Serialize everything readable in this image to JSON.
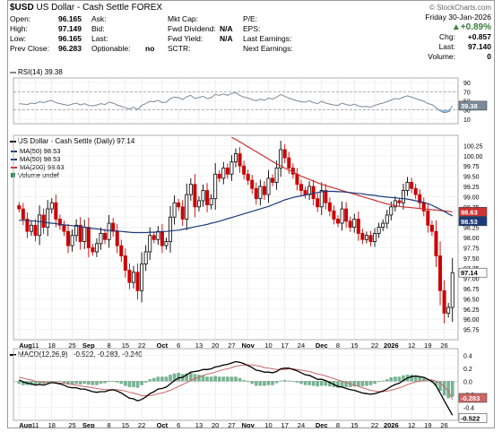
{
  "header": {
    "symbol": "$USD",
    "name": "US Dollar - Cash Settle",
    "exchange": "FOREX",
    "copyright": "© StockCharts.com",
    "date": "Friday  30-Jan-2026",
    "change_pct": "+0.89%",
    "col1": [
      [
        "Open:",
        "96.165"
      ],
      [
        "High:",
        "97.149"
      ],
      [
        "Low:",
        "96.165"
      ],
      [
        "Prev Close:",
        "96.283"
      ]
    ],
    "col2": [
      [
        "Ask:",
        ""
      ],
      [
        "Bid:",
        ""
      ],
      [
        "Last:",
        ""
      ],
      [
        "Optionable:",
        "no"
      ]
    ],
    "col3": [
      [
        "Mkt Cap:",
        ""
      ],
      [
        "Fwd Dividend:",
        "N/A"
      ],
      [
        "Fwd Yield:",
        "N/A"
      ],
      [
        "SCTR:",
        ""
      ]
    ],
    "col4": [
      [
        "P/E:",
        ""
      ],
      [
        "EPS:",
        ""
      ],
      [
        "Last Earnings:",
        ""
      ],
      [
        "Next Earnings:",
        ""
      ]
    ],
    "col5": [
      [
        "Chg:",
        "+0.857"
      ],
      [
        "Last:",
        "97.140"
      ],
      [
        "Volume:",
        "0"
      ]
    ]
  },
  "colors": {
    "up": "#000000",
    "down": "#cc0000",
    "ma50": "#1a3a7a",
    "ma200": "#cc3333",
    "rsi": "#7c8a9a",
    "macd": "#000000",
    "signal": "#cc6666",
    "hist": "#2e8b57"
  },
  "chart_data": [
    {
      "type": "candlestick",
      "title": "US Dollar - Cash Settle (Daily) 97.14",
      "legend": [
        {
          "name": "MA(50) 98.53",
          "color": "#1a3a7a"
        },
        {
          "name": "MA(50) 98.53",
          "color": "#1a3a7a"
        },
        {
          "name": "MA(200) 98.63",
          "color": "#cc3333"
        },
        {
          "name": "Volume undef",
          "color": "#2e8b57"
        }
      ],
      "ylim": [
        95.5,
        100.5
      ],
      "yticks": [
        95.75,
        96.0,
        96.25,
        96.5,
        96.75,
        97.0,
        97.25,
        97.5,
        97.75,
        98.0,
        98.25,
        98.5,
        98.75,
        99.0,
        99.25,
        99.5,
        99.75,
        100.0,
        100.25
      ],
      "ytick_labels": [
        "95.75",
        "96.00",
        "96.25",
        "96.50",
        "96.75",
        "97.00",
        "97.25",
        "97.50",
        "97.75",
        "98.00",
        "98.25",
        "98.50",
        "98.75",
        "99.00",
        "99.25",
        "99.50",
        "99.75",
        "100.00",
        "100.25"
      ],
      "last_badges": [
        {
          "label": "97.14",
          "value": 97.14
        },
        {
          "label": "98.53",
          "value": 98.53
        },
        {
          "label": "98.63",
          "value": 98.63
        }
      ],
      "xtick_labels": [
        "Aug",
        "11",
        "18",
        "25",
        "Sep",
        "8",
        "15",
        "22",
        "Oct",
        "6",
        "13",
        "20",
        "27",
        "Nov",
        "10",
        "17",
        "24",
        "Dec",
        "8",
        "15",
        "22",
        "2026",
        "12",
        "19",
        "26"
      ],
      "close": [
        98.7,
        98.45,
        98.15,
        98.3,
        98.05,
        98.55,
        98.25,
        98.7,
        98.85,
        98.45,
        98.3,
        98.15,
        97.8,
        98.05,
        98.3,
        97.9,
        98.25,
        97.75,
        97.65,
        97.85,
        98.1,
        97.95,
        98.35,
        98.15,
        97.8,
        97.55,
        97.2,
        96.9,
        97.15,
        96.7,
        97.35,
        97.65,
        98.05,
        97.95,
        98.15,
        97.8,
        97.9,
        98.5,
        98.85,
        98.75,
        98.45,
        99.05,
        99.3,
        98.75,
        98.9,
        99.15,
        98.8,
        98.95,
        99.55,
        99.45,
        99.7,
        99.55,
        99.85,
        100.05,
        99.75,
        99.55,
        99.4,
        99.2,
        98.95,
        99.25,
        99.05,
        99.45,
        99.35,
        99.7,
        100.15,
        99.95,
        99.7,
        99.55,
        99.3,
        99.15,
        99.05,
        99.25,
        98.95,
        98.75,
        99.15,
        98.85,
        98.65,
        98.45,
        98.35,
        98.7,
        98.4,
        98.25,
        98.45,
        98.1,
        97.95,
        98.05,
        97.9,
        98.1,
        98.25,
        98.35,
        98.55,
        98.75,
        98.9,
        98.85,
        99.15,
        99.35,
        99.2,
        99.05,
        98.85,
        98.65,
        98.3,
        98.15,
        97.55,
        96.7,
        96.15,
        96.29,
        97.14
      ],
      "ma50": [
        98.42,
        98.42,
        98.41,
        98.41,
        98.4,
        98.39,
        98.38,
        98.36,
        98.35,
        98.34,
        98.32,
        98.31,
        98.3,
        98.29,
        98.28,
        98.27,
        98.25,
        98.24,
        98.22,
        98.21,
        98.2,
        98.18,
        98.17,
        98.17,
        98.16,
        98.15,
        98.14,
        98.13,
        98.12,
        98.12,
        98.12,
        98.12,
        98.13,
        98.13,
        98.14,
        98.14,
        98.15,
        98.16,
        98.17,
        98.18,
        98.2,
        98.22,
        98.24,
        98.26,
        98.28,
        98.3,
        98.32,
        98.35,
        98.37,
        98.4,
        98.43,
        98.46,
        98.49,
        98.52,
        98.55,
        98.58,
        98.61,
        98.64,
        98.67,
        98.7,
        98.73,
        98.76,
        98.8,
        98.84,
        98.88,
        98.92,
        98.95,
        98.98,
        99.0,
        99.02,
        99.04,
        99.06,
        99.08,
        99.1,
        99.12,
        99.13,
        99.13,
        99.13,
        99.12,
        99.12,
        99.11,
        99.1,
        99.09,
        99.08,
        99.07,
        99.05,
        99.04,
        99.03,
        99.01,
        99.0,
        98.99,
        98.98,
        98.97,
        98.96,
        98.95,
        98.94,
        98.92,
        98.9,
        98.88,
        98.86,
        98.83,
        98.79,
        98.74,
        98.69,
        98.64,
        98.58,
        98.53
      ],
      "ma200": [
        null,
        null,
        null,
        null,
        null,
        null,
        null,
        null,
        null,
        null,
        null,
        null,
        null,
        null,
        null,
        null,
        null,
        null,
        null,
        null,
        null,
        null,
        null,
        null,
        null,
        null,
        null,
        null,
        null,
        null,
        null,
        null,
        null,
        null,
        null,
        null,
        null,
        null,
        null,
        null,
        null,
        null,
        null,
        null,
        null,
        null,
        null,
        null,
        null,
        null,
        null,
        null,
        100.45,
        100.4,
        100.34,
        100.28,
        100.22,
        100.16,
        100.1,
        100.04,
        99.98,
        99.92,
        99.86,
        99.8,
        99.75,
        99.7,
        99.65,
        99.6,
        99.55,
        99.5,
        99.46,
        99.42,
        99.38,
        99.34,
        99.3,
        99.27,
        99.24,
        99.21,
        99.18,
        99.15,
        99.12,
        99.09,
        99.06,
        99.03,
        99.0,
        98.97,
        98.94,
        98.91,
        98.88,
        98.85,
        98.82,
        98.8,
        98.78,
        98.76,
        98.75,
        98.74,
        98.73,
        98.72,
        98.71,
        98.7,
        98.69,
        98.68,
        98.67,
        98.66,
        98.65,
        98.64,
        98.63
      ]
    },
    {
      "type": "line",
      "title": "RSI(14) 39.38",
      "ylim": [
        0,
        100
      ],
      "yticks": [
        10,
        30,
        50,
        70,
        90
      ],
      "ytick_labels": [
        "10",
        "30",
        "50",
        "70",
        "90"
      ],
      "reference_lines": [
        30,
        70
      ],
      "last_badge": {
        "label": "39.38",
        "value": 39.38
      },
      "values": [
        44,
        43,
        42,
        45,
        44,
        48,
        46,
        49,
        51,
        46,
        44,
        42,
        40,
        43,
        45,
        41,
        44,
        40,
        39,
        41,
        44,
        42,
        47,
        45,
        41,
        38,
        35,
        32,
        36,
        31,
        40,
        44,
        49,
        48,
        51,
        46,
        47,
        55,
        58,
        57,
        53,
        59,
        62,
        55,
        57,
        60,
        55,
        57,
        64,
        62,
        65,
        62,
        66,
        68,
        62,
        58,
        56,
        53,
        50,
        54,
        51,
        56,
        54,
        58,
        64,
        60,
        56,
        53,
        50,
        48,
        47,
        50,
        46,
        44,
        49,
        45,
        43,
        41,
        40,
        45,
        42,
        40,
        43,
        39,
        37,
        38,
        36,
        40,
        43,
        45,
        48,
        52,
        55,
        54,
        58,
        61,
        58,
        55,
        52,
        49,
        44,
        42,
        35,
        28,
        24,
        26,
        39
      ]
    },
    {
      "type": "line",
      "title": "MACD(12,26,9)",
      "values_label": "-0.522, -0.283, -0.240",
      "series": [
        {
          "name": "MACD"
        },
        {
          "name": "Signal"
        },
        {
          "name": "Histogram"
        }
      ],
      "ylim": [
        -0.6,
        0.5
      ],
      "yticks": [
        -0.4,
        -0.2,
        0.0,
        0.2,
        0.4
      ],
      "ytick_labels": [
        "-0.4",
        "-0.2",
        "0.0",
        "0.2",
        "0.4"
      ],
      "last_badges": [
        {
          "label": "-0.283",
          "value": -0.283
        },
        {
          "label": "-0.522",
          "value": -0.522
        }
      ],
      "macd": [
        0.02,
        -0.01,
        -0.03,
        -0.04,
        -0.06,
        -0.05,
        -0.06,
        -0.04,
        -0.02,
        -0.03,
        -0.04,
        -0.06,
        -0.09,
        -0.1,
        -0.1,
        -0.12,
        -0.12,
        -0.14,
        -0.16,
        -0.17,
        -0.16,
        -0.16,
        -0.14,
        -0.13,
        -0.15,
        -0.18,
        -0.22,
        -0.26,
        -0.27,
        -0.3,
        -0.28,
        -0.24,
        -0.19,
        -0.16,
        -0.12,
        -0.11,
        -0.09,
        -0.04,
        0.01,
        0.05,
        0.06,
        0.1,
        0.14,
        0.15,
        0.16,
        0.18,
        0.18,
        0.19,
        0.22,
        0.23,
        0.25,
        0.26,
        0.28,
        0.3,
        0.29,
        0.27,
        0.24,
        0.21,
        0.17,
        0.16,
        0.14,
        0.14,
        0.13,
        0.15,
        0.19,
        0.2,
        0.2,
        0.18,
        0.16,
        0.13,
        0.1,
        0.09,
        0.06,
        0.03,
        0.03,
        0.01,
        -0.02,
        -0.05,
        -0.08,
        -0.09,
        -0.11,
        -0.13,
        -0.14,
        -0.16,
        -0.18,
        -0.19,
        -0.2,
        -0.19,
        -0.17,
        -0.15,
        -0.12,
        -0.08,
        -0.05,
        -0.03,
        0.01,
        0.05,
        0.07,
        0.08,
        0.07,
        0.06,
        0.03,
        0.0,
        -0.07,
        -0.18,
        -0.3,
        -0.41,
        -0.522
      ],
      "signal": [
        0.06,
        0.05,
        0.03,
        0.02,
        0.0,
        -0.01,
        -0.02,
        -0.02,
        -0.02,
        -0.02,
        -0.03,
        -0.03,
        -0.04,
        -0.05,
        -0.06,
        -0.07,
        -0.08,
        -0.09,
        -0.1,
        -0.11,
        -0.12,
        -0.13,
        -0.13,
        -0.13,
        -0.13,
        -0.14,
        -0.15,
        -0.17,
        -0.18,
        -0.2,
        -0.22,
        -0.22,
        -0.22,
        -0.21,
        -0.19,
        -0.18,
        -0.16,
        -0.14,
        -0.11,
        -0.08,
        -0.05,
        -0.02,
        0.01,
        0.04,
        0.06,
        0.09,
        0.11,
        0.12,
        0.14,
        0.16,
        0.18,
        0.19,
        0.21,
        0.23,
        0.24,
        0.25,
        0.25,
        0.25,
        0.24,
        0.23,
        0.21,
        0.2,
        0.19,
        0.18,
        0.18,
        0.18,
        0.19,
        0.19,
        0.18,
        0.17,
        0.16,
        0.15,
        0.13,
        0.11,
        0.1,
        0.08,
        0.06,
        0.04,
        0.02,
        0.0,
        -0.02,
        -0.04,
        -0.06,
        -0.08,
        -0.1,
        -0.12,
        -0.14,
        -0.15,
        -0.16,
        -0.16,
        -0.15,
        -0.14,
        -0.12,
        -0.1,
        -0.08,
        -0.05,
        -0.03,
        -0.01,
        0.0,
        0.01,
        0.02,
        0.02,
        0.0,
        -0.03,
        -0.08,
        -0.15,
        -0.283
      ],
      "histogram": [
        -0.04,
        -0.06,
        -0.06,
        -0.06,
        -0.06,
        -0.04,
        -0.04,
        -0.02,
        0.0,
        -0.01,
        -0.01,
        -0.03,
        -0.05,
        -0.05,
        -0.04,
        -0.05,
        -0.04,
        -0.05,
        -0.06,
        -0.06,
        -0.04,
        -0.03,
        -0.01,
        0.0,
        -0.02,
        -0.04,
        -0.07,
        -0.09,
        -0.09,
        -0.1,
        -0.06,
        -0.02,
        0.03,
        0.05,
        0.07,
        0.07,
        0.07,
        0.1,
        0.12,
        0.13,
        0.11,
        0.12,
        0.13,
        0.11,
        0.1,
        0.09,
        0.07,
        0.07,
        0.08,
        0.07,
        0.07,
        0.07,
        0.07,
        0.07,
        0.05,
        0.02,
        -0.01,
        -0.04,
        -0.07,
        -0.07,
        -0.07,
        -0.06,
        -0.06,
        -0.03,
        0.01,
        0.02,
        0.01,
        -0.01,
        -0.02,
        -0.04,
        -0.06,
        -0.06,
        -0.07,
        -0.08,
        -0.07,
        -0.07,
        -0.08,
        -0.09,
        -0.1,
        -0.09,
        -0.09,
        -0.09,
        -0.08,
        -0.08,
        -0.08,
        -0.07,
        -0.06,
        -0.04,
        -0.01,
        0.01,
        0.03,
        0.06,
        0.07,
        0.07,
        0.09,
        0.1,
        0.1,
        0.09,
        0.07,
        0.05,
        0.01,
        -0.02,
        -0.07,
        -0.15,
        -0.22,
        -0.26,
        -0.24
      ]
    }
  ]
}
